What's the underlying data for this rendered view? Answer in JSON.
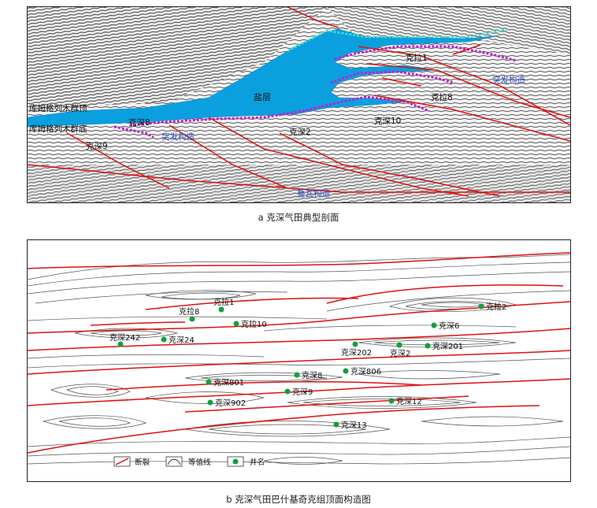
{
  "panel_a": {
    "caption": "a  克深气田典型剖面",
    "salt_label": "盐层",
    "top_label": "库姆格列木群顶",
    "bottom_label": "库姆格列木群底",
    "well_labels": [
      "克拉1",
      "克拉8",
      "克深10",
      "克深2",
      "克深8",
      "克深9"
    ],
    "structure_labels": [
      "突发构造",
      "突发构造",
      "叠瓦构造"
    ],
    "colors": {
      "salt": "#0aa0e0",
      "fault": "#e01010",
      "horizon_purple": "#c020d0",
      "horizon_cyan": "#40e0d0",
      "structure_text": "#3050c0"
    }
  },
  "panel_b": {
    "caption": "b  克深气田巴什基奇克组顶面构造图",
    "wells": [
      {
        "name": "克拉1"
      },
      {
        "name": "克拉8"
      },
      {
        "name": "克拉10"
      },
      {
        "name": "克拉2"
      },
      {
        "name": "克深6"
      },
      {
        "name": "克深242"
      },
      {
        "name": "克深24"
      },
      {
        "name": "克深202"
      },
      {
        "name": "克深2"
      },
      {
        "name": "克深201"
      },
      {
        "name": "克深806"
      },
      {
        "name": "克深8"
      },
      {
        "name": "克深801"
      },
      {
        "name": "克深9"
      },
      {
        "name": "克深902"
      },
      {
        "name": "克深12"
      },
      {
        "name": "克深13"
      }
    ],
    "legend": {
      "fault": "断裂",
      "contour": "等值线",
      "well": "井名"
    },
    "colors": {
      "fault": "#e01010",
      "well": "#10a040",
      "contour": "#444444"
    }
  }
}
